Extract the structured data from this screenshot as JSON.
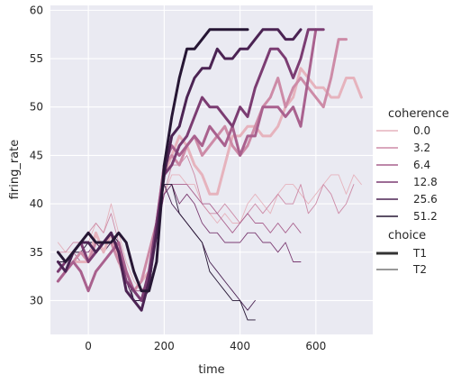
{
  "chart_data": {
    "type": "line",
    "xlabel": "time",
    "ylabel": "firing_rate",
    "xlim": [
      -100,
      750
    ],
    "ylim": [
      26.5,
      60.5
    ],
    "x_ticks": [
      0,
      200,
      400,
      600
    ],
    "y_ticks": [
      30,
      35,
      40,
      45,
      50,
      55,
      60
    ],
    "grid": true,
    "legend_placement": "right",
    "legend": {
      "hue_title": "coherence",
      "hue_levels": [
        "0.0",
        "3.2",
        "6.4",
        "12.8",
        "25.6",
        "51.2"
      ],
      "style_title": "choice",
      "style_levels": [
        "T1",
        "T2"
      ]
    },
    "series": [
      {
        "coherence": "0.0",
        "choice": "T1",
        "color": "#e6b3bd",
        "x": [
          -80,
          -60,
          -40,
          -20,
          0,
          20,
          40,
          60,
          80,
          100,
          120,
          140,
          160,
          180,
          200,
          220,
          240,
          260,
          280,
          300,
          320,
          340,
          360,
          380,
          400,
          420,
          440,
          460,
          480,
          500,
          520,
          540,
          560,
          580,
          600,
          620,
          640,
          660,
          680,
          700,
          720
        ],
        "y": [
          32,
          33,
          34,
          34,
          34,
          37,
          35,
          37,
          34,
          32,
          31,
          32,
          33,
          38,
          43,
          45,
          47,
          46,
          44,
          43,
          41,
          41,
          44,
          47,
          47,
          48,
          48,
          47,
          47,
          48,
          50,
          51,
          54,
          53,
          52,
          52,
          51,
          51,
          53,
          53,
          51
        ]
      },
      {
        "coherence": "3.2",
        "choice": "T1",
        "color": "#cd8ba7",
        "x": [
          -80,
          -60,
          -40,
          -20,
          0,
          20,
          40,
          60,
          80,
          100,
          120,
          140,
          160,
          180,
          200,
          220,
          240,
          260,
          280,
          300,
          320,
          340,
          360,
          380,
          400,
          420,
          440,
          460,
          480,
          500,
          520,
          540,
          560,
          580,
          600,
          620,
          640,
          660,
          680
        ],
        "y": [
          32,
          33,
          34,
          35,
          34,
          36,
          36,
          36,
          34,
          33,
          31,
          32,
          35,
          38,
          44,
          45,
          44,
          46,
          47,
          45,
          46,
          47,
          48,
          46,
          45,
          46,
          48,
          50,
          51,
          53,
          50,
          52,
          53,
          52,
          51,
          50,
          53,
          57,
          57
        ]
      },
      {
        "coherence": "6.4",
        "choice": "T1",
        "color": "#a9618e",
        "x": [
          -80,
          -60,
          -40,
          -20,
          0,
          20,
          40,
          60,
          80,
          100,
          120,
          140,
          160,
          180,
          200,
          220,
          240,
          260,
          280,
          300,
          320,
          340,
          360,
          380,
          400,
          420,
          440,
          460,
          480,
          500,
          520,
          540,
          560,
          580,
          600
        ],
        "y": [
          32,
          33,
          34,
          33,
          31,
          33,
          34,
          35,
          36,
          33,
          31,
          30,
          32,
          38,
          44,
          46,
          45,
          46,
          47,
          46,
          48,
          47,
          46,
          48,
          45,
          47,
          47,
          50,
          50,
          50,
          49,
          50,
          48,
          53,
          58
        ]
      },
      {
        "coherence": "12.8",
        "choice": "T1",
        "color": "#7b3c72",
        "x": [
          -80,
          -60,
          -40,
          -20,
          0,
          20,
          40,
          60,
          80,
          100,
          120,
          140,
          160,
          180,
          200,
          220,
          240,
          260,
          280,
          300,
          320,
          340,
          360,
          380,
          400,
          420,
          440,
          460,
          480,
          500,
          520,
          540,
          560,
          580,
          600,
          620
        ],
        "y": [
          33,
          34,
          35,
          36,
          34,
          35,
          36,
          37,
          35,
          32,
          31,
          30,
          33,
          38,
          43,
          44,
          46,
          47,
          49,
          51,
          50,
          50,
          49,
          48,
          50,
          49,
          52,
          54,
          56,
          56,
          55,
          53,
          55,
          58,
          58,
          58
        ]
      },
      {
        "coherence": "25.6",
        "choice": "T1",
        "color": "#4b2353",
        "x": [
          -80,
          -60,
          -40,
          -20,
          0,
          20,
          40,
          60,
          80,
          100,
          120,
          140,
          160,
          180,
          200,
          220,
          240,
          260,
          280,
          300,
          320,
          340,
          360,
          380,
          400,
          420,
          440,
          460,
          480,
          500,
          520,
          540,
          560
        ],
        "y": [
          34,
          33,
          35,
          36,
          36,
          35,
          36,
          37,
          35,
          31,
          30,
          29,
          32,
          37,
          43,
          47,
          48,
          51,
          53,
          54,
          54,
          56,
          55,
          55,
          56,
          56,
          57,
          58,
          58,
          58,
          57,
          57,
          58
        ]
      },
      {
        "coherence": "51.2",
        "choice": "T1",
        "color": "#261634",
        "x": [
          -80,
          -60,
          -40,
          -20,
          0,
          20,
          40,
          60,
          80,
          100,
          120,
          140,
          160,
          180,
          200,
          220,
          240,
          260,
          280,
          300,
          320,
          340,
          360,
          380,
          400,
          420
        ],
        "y": [
          35,
          34,
          35,
          36,
          37,
          36,
          36,
          36,
          37,
          36,
          33,
          31,
          31,
          34,
          44,
          49,
          53,
          56,
          56,
          57,
          58,
          58,
          58,
          58,
          58,
          58
        ]
      },
      {
        "coherence": "0.0",
        "choice": "T2",
        "color": "#e6b3bd",
        "x": [
          -80,
          -60,
          -40,
          -20,
          0,
          20,
          40,
          60,
          80,
          100,
          120,
          140,
          160,
          180,
          200,
          220,
          240,
          260,
          280,
          300,
          320,
          340,
          360,
          380,
          400,
          420,
          440,
          460,
          480,
          500,
          520,
          540,
          560,
          580,
          600,
          620,
          640,
          660,
          680,
          700,
          720
        ],
        "y": [
          36,
          35,
          35,
          36,
          36,
          38,
          37,
          40,
          37,
          34,
          32,
          31,
          32,
          38,
          41,
          43,
          43,
          42,
          42,
          40,
          39,
          38,
          39,
          38,
          38,
          40,
          41,
          40,
          39,
          41,
          42,
          42,
          41,
          40,
          41,
          42,
          43,
          43,
          41,
          43,
          42
        ]
      },
      {
        "coherence": "3.2",
        "choice": "T2",
        "color": "#cd8ba7",
        "x": [
          -80,
          -60,
          -40,
          -20,
          0,
          20,
          40,
          60,
          80,
          100,
          120,
          140,
          160,
          180,
          200,
          220,
          240,
          260,
          280,
          300,
          320,
          340,
          360,
          380,
          400,
          420,
          440,
          460,
          480,
          500,
          520,
          540,
          560,
          580,
          600,
          620,
          640,
          660,
          680,
          700
        ],
        "y": [
          35,
          35,
          36,
          36,
          37,
          38,
          37,
          39,
          36,
          33,
          31,
          31,
          32,
          38,
          41,
          44,
          44,
          45,
          43,
          40,
          39,
          39,
          40,
          39,
          38,
          39,
          40,
          39,
          40,
          41,
          40,
          40,
          42,
          39,
          40,
          42,
          41,
          39,
          40,
          42
        ]
      },
      {
        "coherence": "6.4",
        "choice": "T2",
        "color": "#a9618e",
        "x": [
          -80,
          -60,
          -40,
          -20,
          0,
          20,
          40,
          60,
          80,
          100,
          120,
          140,
          160,
          180,
          200,
          220,
          240,
          260,
          280,
          300,
          320,
          340,
          360,
          380,
          400,
          420,
          440,
          460,
          480,
          500,
          520,
          540,
          560
        ],
        "y": [
          33,
          34,
          35,
          34,
          34,
          36,
          35,
          37,
          36,
          32,
          31,
          31,
          32,
          37,
          41,
          42,
          42,
          42,
          41,
          40,
          40,
          39,
          38,
          37,
          38,
          39,
          38,
          38,
          37,
          38,
          37,
          38,
          37
        ]
      },
      {
        "coherence": "12.8",
        "choice": "T2",
        "color": "#7b3c72",
        "x": [
          -80,
          -60,
          -40,
          -20,
          0,
          20,
          40,
          60,
          80,
          100,
          120,
          140,
          160,
          180,
          200,
          220,
          240,
          260,
          280,
          300,
          320,
          340,
          360,
          380,
          400,
          420,
          440,
          460,
          480,
          500,
          520,
          540,
          560
        ],
        "y": [
          34,
          34,
          35,
          35,
          35,
          36,
          36,
          37,
          35,
          32,
          30,
          30,
          32,
          37,
          41,
          42,
          40,
          41,
          40,
          38,
          37,
          37,
          36,
          36,
          36,
          37,
          37,
          36,
          36,
          35,
          36,
          34,
          34
        ]
      },
      {
        "coherence": "25.6",
        "choice": "T2",
        "color": "#4b2353",
        "x": [
          -80,
          -60,
          -40,
          -20,
          0,
          20,
          40,
          60,
          80,
          100,
          120,
          140,
          160,
          180,
          200,
          220,
          240,
          260,
          280,
          300,
          320,
          340,
          360,
          380,
          400,
          420,
          440
        ],
        "y": [
          34,
          34,
          35,
          36,
          36,
          36,
          35,
          36,
          36,
          32,
          30,
          30,
          32,
          38,
          42,
          40,
          39,
          38,
          37,
          36,
          34,
          33,
          32,
          31,
          30,
          29,
          30
        ]
      },
      {
        "coherence": "51.2",
        "choice": "T2",
        "color": "#261634",
        "x": [
          -80,
          -60,
          -40,
          -20,
          0,
          20,
          40,
          60,
          80,
          100,
          120,
          140,
          160,
          180,
          200,
          220,
          240,
          260,
          280,
          300,
          320,
          340,
          360,
          380,
          400,
          420,
          440
        ],
        "y": [
          34,
          34,
          35,
          35,
          36,
          36,
          36,
          37,
          36,
          33,
          30,
          30,
          31,
          37,
          42,
          42,
          39,
          38,
          37,
          36,
          33,
          32,
          31,
          30,
          30,
          28,
          28
        ]
      }
    ]
  }
}
